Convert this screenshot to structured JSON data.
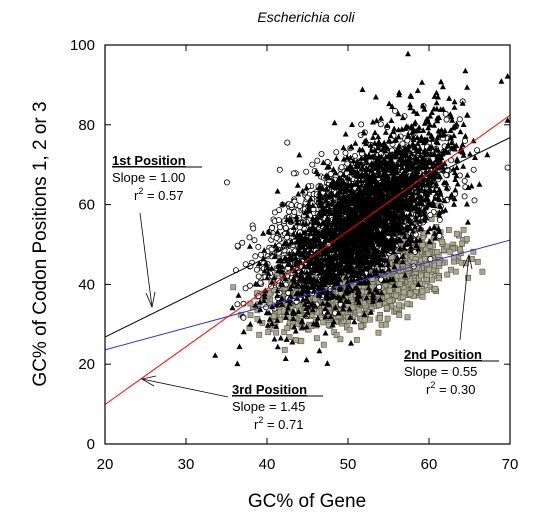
{
  "chart_data": {
    "type": "scatter",
    "title": "Escherichia coli",
    "xlabel": "GC% of Gene",
    "ylabel": "GC% of Codon Positions 1, 2 or 3",
    "xlim": [
      20,
      70
    ],
    "ylim": [
      0,
      100
    ],
    "xticks": [
      20,
      30,
      40,
      50,
      60,
      70
    ],
    "yticks": [
      0,
      20,
      40,
      60,
      80,
      100
    ],
    "grid": false,
    "series": [
      {
        "name": "1st Position",
        "marker": "open-circle",
        "color": "#000000",
        "fit": {
          "slope": 1.0,
          "r2": 0.57,
          "intercept": 6.8,
          "line_color": "#000000"
        },
        "center": [
          50.5,
          57.0
        ],
        "spread": [
          5.0,
          7.0
        ],
        "count": 1800,
        "seed": 11
      },
      {
        "name": "2nd Position",
        "marker": "gray-square",
        "color": "#a8a890",
        "fit": {
          "slope": 0.55,
          "r2": 0.3,
          "intercept": 12.6,
          "line_color": "#3333cc"
        },
        "center": [
          51.5,
          40.9
        ],
        "spread": [
          5.0,
          4.5
        ],
        "count": 1800,
        "seed": 23
      },
      {
        "name": "3rd Position",
        "marker": "filled-triangle",
        "color": "#000000",
        "fit": {
          "slope": 1.45,
          "r2": 0.71,
          "intercept": -19.1,
          "line_color": "#ff0000"
        },
        "center": [
          52.0,
          56.3
        ],
        "spread": [
          5.0,
          8.5
        ],
        "count": 2600,
        "seed": 37
      }
    ],
    "annotations": [
      {
        "name": "1st Position",
        "label_slope": "Slope = 1.00",
        "label_r": "r",
        "label_r2": " = 0.57"
      },
      {
        "name": "2nd Position",
        "label_slope": "Slope = 0.55",
        "label_r": "r",
        "label_r2": " = 0.30"
      },
      {
        "name": "3rd Position",
        "label_slope": "Slope = 1.45",
        "label_r": "r",
        "label_r2": " = 0.71"
      }
    ]
  }
}
